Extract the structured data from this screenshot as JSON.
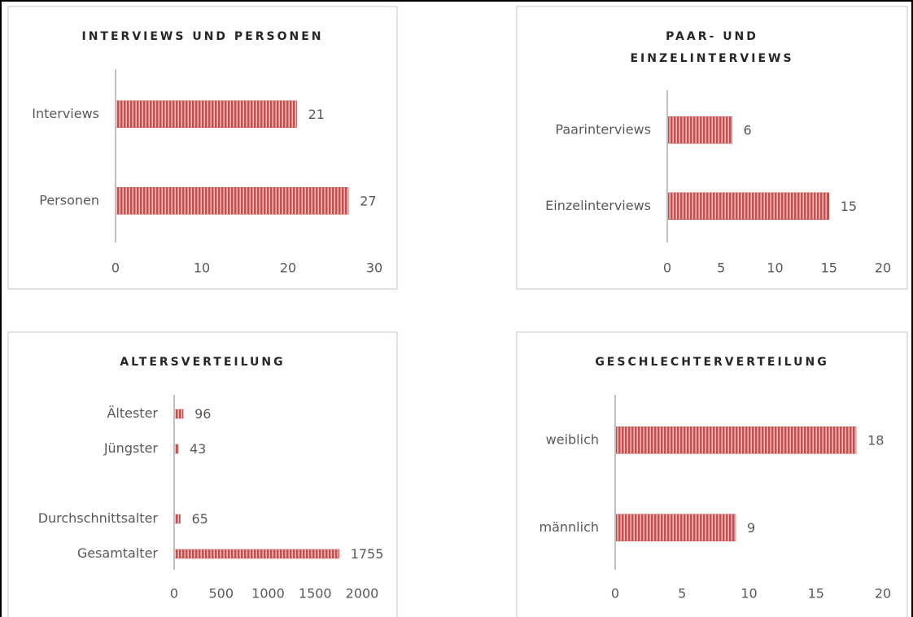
{
  "chart_data": [
    {
      "type": "bar",
      "orientation": "horizontal",
      "title": [
        "INTERVIEWS UND PERSONEN"
      ],
      "categories": [
        "Interviews",
        "Personen"
      ],
      "values": [
        21,
        27
      ],
      "color": "#c0504d",
      "xlim": [
        0,
        30
      ],
      "xticks": [
        0,
        10,
        20,
        30
      ]
    },
    {
      "type": "bar",
      "orientation": "horizontal",
      "title": [
        "PAAR- UND",
        "EINZELINTERVIEWS"
      ],
      "categories": [
        "Paarinterviews",
        "Einzelinterviews"
      ],
      "values": [
        6,
        15
      ],
      "color": "#c0504d",
      "xlim": [
        0,
        20
      ],
      "xticks": [
        0,
        5,
        10,
        15,
        20
      ]
    },
    {
      "type": "bar",
      "orientation": "horizontal",
      "title": [
        "ALTERSVERTEILUNG"
      ],
      "categories": [
        "Ältester",
        "Jüngster",
        null,
        "Durchschnittsalter",
        "Gesamtalter"
      ],
      "values": [
        96,
        43,
        null,
        65,
        1755
      ],
      "color": "#c0504d",
      "xlim": [
        0,
        2000
      ],
      "xticks": [
        0,
        500,
        1000,
        1500,
        2000
      ]
    },
    {
      "type": "bar",
      "orientation": "horizontal",
      "title": [
        "GESCHLECHTERVERTEILUNG"
      ],
      "categories": [
        "weiblich",
        "männlich"
      ],
      "values": [
        18,
        9
      ],
      "color": "#c0504d",
      "xlim": [
        0,
        20
      ],
      "xticks": [
        0,
        5,
        10,
        15,
        20
      ]
    }
  ]
}
